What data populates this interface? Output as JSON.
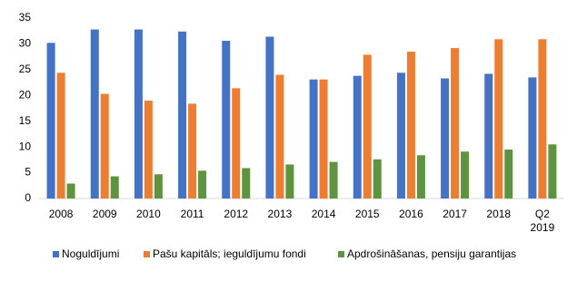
{
  "chart_data": {
    "type": "bar",
    "categories": [
      "2008",
      "2009",
      "2010",
      "2011",
      "2012",
      "2013",
      "2014",
      "2015",
      "2016",
      "2017",
      "2018",
      "Q2 2019"
    ],
    "series": [
      {
        "name": "Noguldījumi",
        "color": "#4472c4",
        "values": [
          30.2,
          32.8,
          32.8,
          32.4,
          30.6,
          31.4,
          23.1,
          23.8,
          24.4,
          23.3,
          24.2,
          23.5
        ]
      },
      {
        "name": "Pašu kapitāls; ieguldījumu fondi",
        "color": "#ed7d31",
        "values": [
          24.4,
          20.3,
          19.0,
          18.4,
          21.4,
          24.0,
          23.1,
          27.9,
          28.5,
          29.2,
          30.9,
          30.9
        ]
      },
      {
        "name": "Apdrošināšanas, pensiju garantijas",
        "color": "#5e9440",
        "values": [
          2.9,
          4.3,
          4.7,
          5.4,
          5.9,
          6.6,
          7.1,
          7.6,
          8.4,
          9.1,
          9.5,
          10.5
        ]
      }
    ],
    "ylim": [
      0,
      35
    ],
    "yticks": [
      0,
      5,
      10,
      15,
      20,
      25,
      30,
      35
    ],
    "grid": false,
    "legend": "bottom"
  }
}
